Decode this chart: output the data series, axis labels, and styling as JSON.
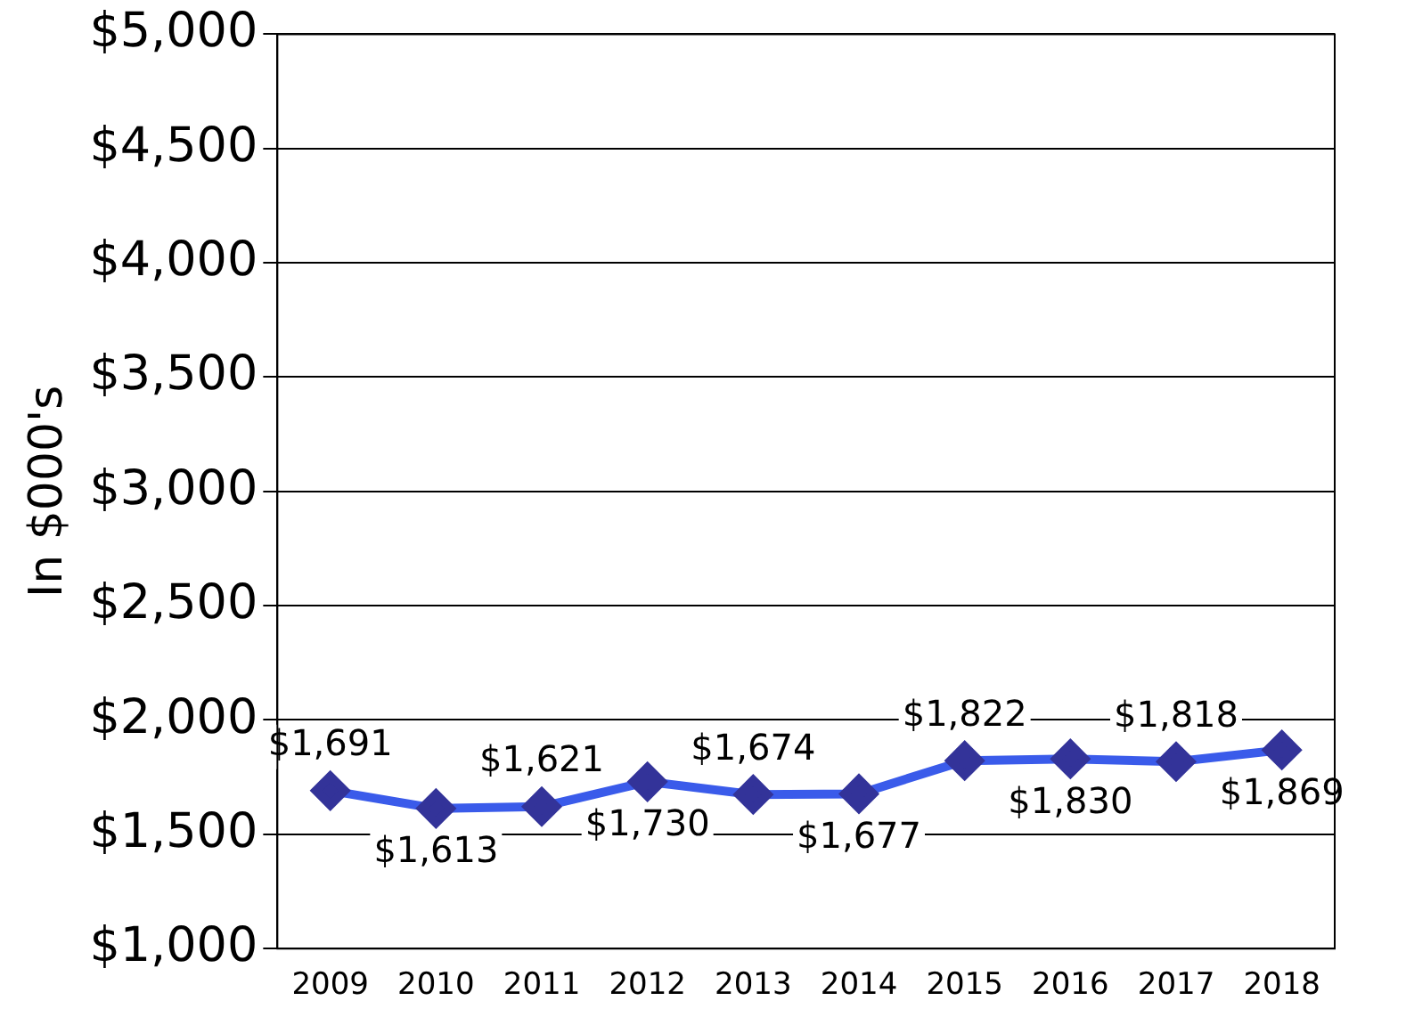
{
  "chart_data": {
    "type": "line",
    "ylabel": "In $000's",
    "categories": [
      "2009",
      "2010",
      "2011",
      "2012",
      "2013",
      "2014",
      "2015",
      "2016",
      "2017",
      "2018"
    ],
    "series": [
      {
        "color": "#3a5bea",
        "values": [
          1691,
          1613,
          1621,
          1730,
          1674,
          1677,
          1822,
          1830,
          1818,
          1869
        ],
        "value_labels": [
          "$1,691",
          "$1,613",
          "$1,621",
          "$1,730",
          "$1,674",
          "$1,677",
          "$1,822",
          "$1,830",
          "$1,818",
          "$1,869"
        ]
      }
    ],
    "ylim": [
      1000,
      5000
    ],
    "yticks": [
      {
        "value": 1000,
        "label": "$1,000"
      },
      {
        "value": 1500,
        "label": "$1,500"
      },
      {
        "value": 2000,
        "label": "$2,000"
      },
      {
        "value": 2500,
        "label": "$2,500"
      },
      {
        "value": 3000,
        "label": "$3,000"
      },
      {
        "value": 3500,
        "label": "$3,500"
      },
      {
        "value": 4000,
        "label": "$4,000"
      },
      {
        "value": 4500,
        "label": "$4,500"
      },
      {
        "value": 5000,
        "label": "$5,000"
      }
    ],
    "grid": "y",
    "legend": false,
    "marker": "diamond",
    "line_style": "solid"
  }
}
